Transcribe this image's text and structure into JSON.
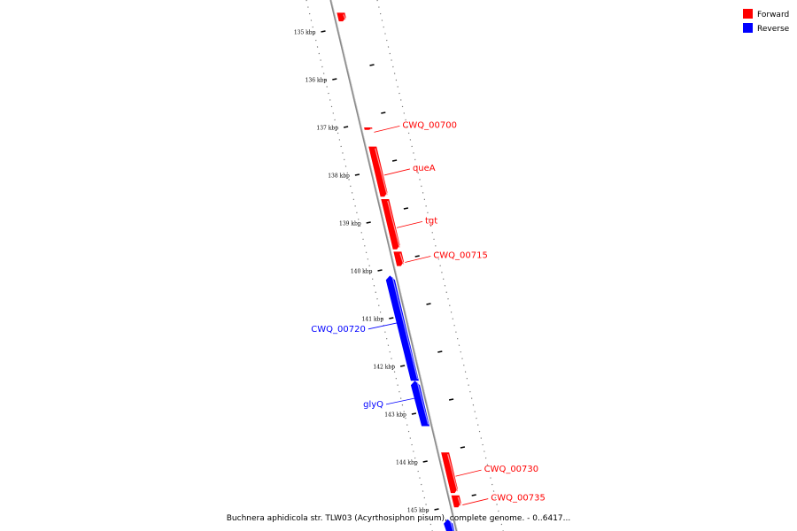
{
  "legend": {
    "forward_label": "Forward",
    "reverse_label": "Reverse",
    "forward_color": "#ff0000",
    "reverse_color": "#0000ff"
  },
  "caption": "Buchnera aphidicola str. TLW03 (Acyrthosiphon pisum), complete genome. - 0..6417...",
  "ticks": [
    {
      "label": "135 kbp"
    },
    {
      "label": "136 kbp"
    },
    {
      "label": "137 kbp"
    },
    {
      "label": "138 kbp"
    },
    {
      "label": "139 kbp"
    },
    {
      "label": "140 kbp"
    },
    {
      "label": "141 kbp"
    },
    {
      "label": "142 kbp"
    },
    {
      "label": "143 kbp"
    },
    {
      "label": "144 kbp"
    },
    {
      "label": "145 kbp"
    }
  ],
  "features": [
    {
      "label": "",
      "strand": "forward",
      "start_kbp": 134.6,
      "end_kbp": 134.78
    },
    {
      "label": "CWQ_00700",
      "strand": "forward",
      "start_kbp": 137.0,
      "end_kbp": 137.05
    },
    {
      "label": "queA",
      "strand": "forward",
      "start_kbp": 137.4,
      "end_kbp": 138.45
    },
    {
      "label": "tgt",
      "strand": "forward",
      "start_kbp": 138.5,
      "end_kbp": 139.55
    },
    {
      "label": "CWQ_00715",
      "strand": "forward",
      "start_kbp": 139.6,
      "end_kbp": 139.9
    },
    {
      "label": "CWQ_00720",
      "strand": "reverse",
      "start_kbp": 140.1,
      "end_kbp": 142.3
    },
    {
      "label": "glyQ",
      "strand": "reverse",
      "start_kbp": 142.3,
      "end_kbp": 143.25
    },
    {
      "label": "CWQ_00730",
      "strand": "forward",
      "start_kbp": 143.8,
      "end_kbp": 144.65
    },
    {
      "label": "CWQ_00735",
      "strand": "forward",
      "start_kbp": 144.7,
      "end_kbp": 144.95
    },
    {
      "label": "",
      "strand": "reverse",
      "start_kbp": 145.2,
      "end_kbp": 145.5
    }
  ]
}
